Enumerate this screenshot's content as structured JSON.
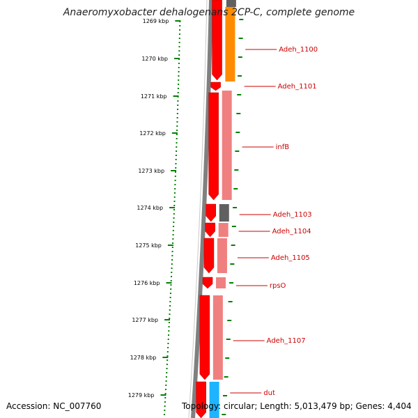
{
  "title": "Anaeromyxobacter dehalogenans 2CP-C, complete genome",
  "accession": "Accession: NC_007760",
  "topology": "Topology: circular; Length: 5,013,479 bp; Genes: 4,404",
  "ticks": [
    {
      "label": "1269 kbp"
    },
    {
      "label": "1270 kbp"
    },
    {
      "label": "1271 kbp"
    },
    {
      "label": "1272 kbp"
    },
    {
      "label": "1273 kbp"
    },
    {
      "label": "1274 kbp"
    },
    {
      "label": "1275 kbp"
    },
    {
      "label": "1276 kbp"
    },
    {
      "label": "1277 kbp"
    },
    {
      "label": "1278 kbp"
    },
    {
      "label": "1279 kbp"
    }
  ],
  "genes": [
    {
      "label": "Adeh_1100",
      "color": "#ff8c00"
    },
    {
      "label": "Adeh_1101",
      "color": "#f08080"
    },
    {
      "label": "infB",
      "color": "#f08080"
    },
    {
      "label": "Adeh_1103",
      "color": "#606060"
    },
    {
      "label": "Adeh_1104",
      "color": "#f08080"
    },
    {
      "label": "Adeh_1105",
      "color": "#f08080"
    },
    {
      "label": "rpsO",
      "color": "#f08080"
    },
    {
      "label": "Adeh_1107",
      "color": "#f08080"
    },
    {
      "label": "dut",
      "color": "#1eb4ff"
    }
  ],
  "colors": {
    "strand": "#ff0000",
    "backbone": "#808080",
    "tick": "#008000",
    "gene_label": "#cc0000"
  }
}
